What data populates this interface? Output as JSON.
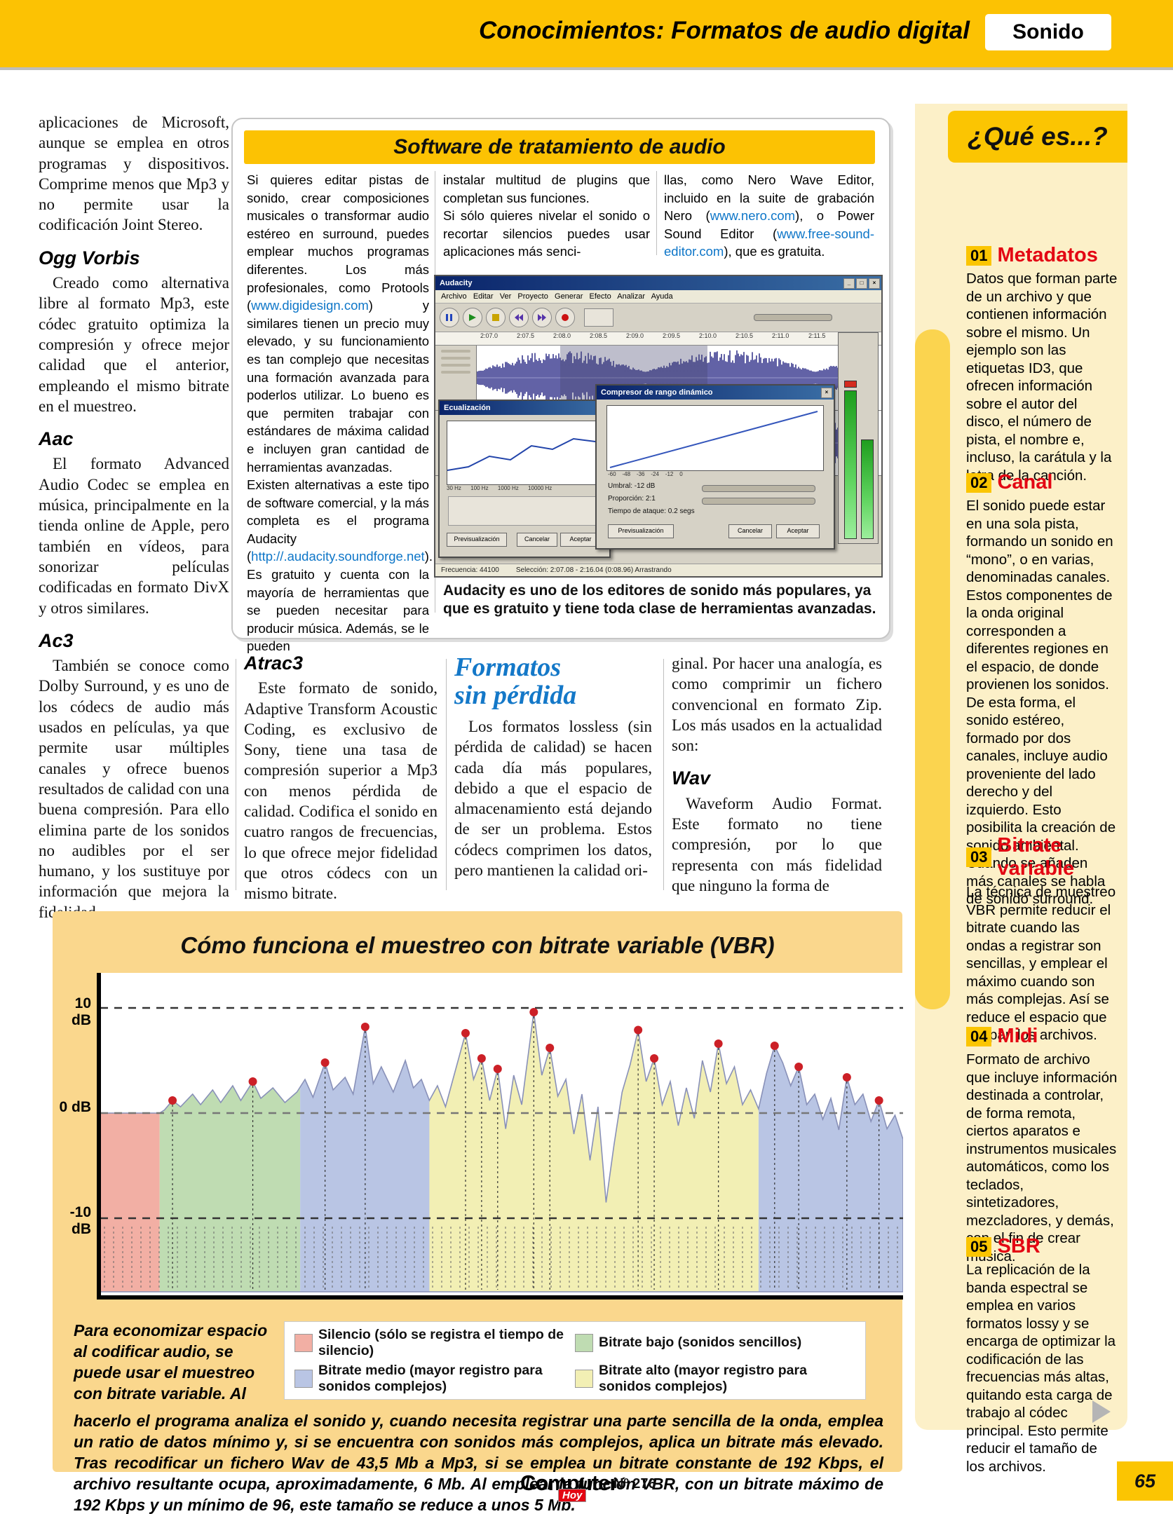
{
  "header": {
    "title": "Conocimientos: Formatos de audio digital",
    "badge": "Sonido"
  },
  "left_column": {
    "intro": "aplicaciones de Microsoft, aunque se emplea en otros programas y dispositivos. Comprime menos que Mp3 y no permite usar la codificación Joint Stereo.",
    "sections": [
      {
        "heading": "Ogg Vorbis",
        "body": "Creado como alternativa libre al formato Mp3, este códec gratuito optimiza la compresión y ofrece mejor calidad que el anterior, empleando el mismo bitrate en el muestreo."
      },
      {
        "heading": "Aac",
        "body": "El formato Advanced Audio Codec se emplea en música, principalmente en la tienda online de Apple, pero también en vídeos, para sonorizar películas codificadas en formato DivX y otros similares."
      },
      {
        "heading": "Ac3",
        "body": "También se conoce como Dolby Surround, y es uno de los códecs de audio más usados en películas, ya que permite usar múltiples canales y ofrece buenos resultados de calidad con una buena compresión. Para ello elimina parte de los sonidos no audibles por el ser humano, y los sustituye por información que mejora la fidelidad."
      }
    ]
  },
  "software_box": {
    "title": "Software de tratamiento de audio",
    "col1_p1a": "Si quieres editar pistas de sonido, crear composiciones musicales o transformar audio estéreo en surround, puedes emplear muchos programas diferentes. Los más profesionales, como Protools (",
    "col1_link1": "www.digidesign.com",
    "col1_p1b": ") y similares tienen un precio muy elevado, y su funcionamiento es tan complejo que necesitas una formación avanzada para poderlos utilizar. Lo bueno es que permiten trabajar con estándares de máxima calidad e incluyen gran cantidad de herramientas avanzadas.",
    "col1_p2a": "Existen alternativas a este tipo de software comercial, y la más completa es el programa Audacity (",
    "col1_link2": "http://.audacity.soundforge.net",
    "col1_p2b": "). Es gratuito y cuenta con la mayoría de herramientas que se pueden necesitar para producir música. Además, se le pueden",
    "col2_p1": "instalar multitud de plugins que completan sus funciones.",
    "col2_p2": "Si sólo quieres nivelar el sonido o recortar silencios puedes usar aplicaciones más senci-",
    "col3_a": "llas, como Nero Wave Editor, incluido en la suite de grabación Nero (",
    "col3_link1": "www.nero.com",
    "col3_b": "), o Power Sound Editor (",
    "col3_link2": "www.free-sound-editor.com",
    "col3_c": "), que es gratuita.",
    "caption": "Audacity es uno de los editores de sonido más populares, ya que es gratuito y tiene toda clase de herramientas avanzadas."
  },
  "audacity": {
    "window_title": "Audacity",
    "menu": "Archivo   Editar   Ver   Proyecto   Generar   Efecto   Analizar   Ayuda",
    "ruler_labels": [
      "2:07.0",
      "2:07.5",
      "2:08.0",
      "2:08.5",
      "2:09.0",
      "2:09.5",
      "2:10.0",
      "2:10.5",
      "2:11.0",
      "2:11.5"
    ],
    "status_left": "Frecuencia: 44100",
    "status_right": "Selección: 2:07.08 - 2:16.04 (0:08.96)   Arrastrando",
    "dialog1_title": "Ecualización",
    "dialog1_axis": "30 Hz      100 Hz      1000 Hz      10000 Hz",
    "dialog2_title": "Compresor de rango dinámico",
    "dialog2_axis": "-60    -48    -36    -24    -12    0",
    "dialog2_fields": {
      "f1": "Umbral: -12 dB",
      "f2": "Proporción: 2:1",
      "f3": "Tiempo de ataque: 0.2 segs"
    },
    "buttons": {
      "preview": "Previsualización",
      "cancel": "Cancelar",
      "ok": "Aceptar"
    }
  },
  "sections": {
    "atrac3_heading": "Atrac3",
    "atrac3_body": "Este formato de sonido, Adaptive Transform Acoustic Coding, es exclusivo de Sony, tiene una tasa de compresión superior a Mp3 con menos pérdida de calidad. Codifica el sonido en cuatro rangos de frecuencias, lo que ofrece mejor fidelidad que otros códecs con un mismo bitrate.",
    "lossless_heading_1": "Formatos",
    "lossless_heading_2": "sin pérdida",
    "lossless_body": "Los formatos lossless (sin pérdida de calidad) se hacen cada día más populares, debido a que el espacio de almacenamiento está dejando de ser un problema. Estos códecs comprimen los datos, pero mantienen la calidad ori-",
    "lossless_cont": "ginal. Por hacer una analogía, es como comprimir un fichero convencional en formato Zip. Los más usados en la actualidad son:",
    "wav_heading": "Wav",
    "wav_body": "Waveform Audio Format. Este formato no tiene compresión, por lo que representa con más fidelidad que ninguno la forma de"
  },
  "sidebar": {
    "title": "¿Qué es...?",
    "items": [
      {
        "num": "01",
        "heading": "Metadatos",
        "body": "Datos que forman parte de un archivo y que contienen información sobre el mismo. Un ejemplo son las etiquetas ID3, que ofrecen información sobre el autor del disco, el número de pista, el nombre e, incluso, la carátula y la letra de la canción."
      },
      {
        "num": "02",
        "heading": "Canal",
        "body": "El sonido puede estar en una sola pista, formando un sonido en “mono”, o en varias, denominadas canales. Estos componentes de la onda original corresponden a diferentes regiones en el espacio, de donde provienen los sonidos. De esta forma, el sonido estéreo, formado por dos canales, incluye audio proveniente del lado derecho y del izquierdo. Esto posibilita la creación de sonido ambiental. Cuando se añaden más canales se habla de sonido surround."
      },
      {
        "num": "03",
        "heading": "Bitrate variable",
        "body": "La técnica de muestreo VBR permite reducir el bitrate cuando las ondas a registrar son sencillas, y emplear el máximo cuando son más complejas. Así se reduce el espacio que ocupan los archivos."
      },
      {
        "num": "04",
        "heading": "Midi",
        "body": "Formato de archivo que incluye información destinada a controlar, de forma remota, ciertos aparatos e instrumentos musicales automáticos, como los teclados, sintetizadores, mezcladores, y demás, con el fin de crear música."
      },
      {
        "num": "05",
        "heading": "SBR",
        "body": "La replicación de la banda espectral se emplea en varios formatos lossy y se encarga de optimizar la codificación de las frecuencias más altas, quitando esta carga de trabajo al códec principal. Esto permite reducir el tamaño de los archivos."
      }
    ]
  },
  "chart": {
    "title": "Cómo funciona el muestreo con bitrate variable (VBR)",
    "intro": "Para economizar espacio al codificar audio, se puede usar el muestreo con bitrate variable. Al",
    "body": "hacerlo el programa analiza el sonido y, cuando necesita registrar una parte sencilla de la onda, emplea un ratio de datos mínimo y, si se encuentra con sonidos más complejos, aplica un bitrate más elevado. Tras recodificar un fichero Wav de 43,5 Mb a Mp3, si se emplea un bitrate constante de 192 Kbps, el archivo resultante ocupa, aproximadamente, 6 Mb. Al emplear la función VBR, con un bitrate máximo de 192 Kbps y un mínimo de 96, este tamaño se reduce a unos 5 Mb.",
    "ylabels": [
      "10 dB",
      "0 dB",
      "-10 dB"
    ],
    "legend": [
      {
        "label": "Silencio (sólo se registra el tiempo de silencio)",
        "color": "#F2AFA4"
      },
      {
        "label": "Bitrate bajo (sonidos sencillos)",
        "color": "#BFDCB2"
      },
      {
        "label": "Bitrate medio (mayor registro para sonidos complejos)",
        "color": "#B9C5E4"
      },
      {
        "label": "Bitrate alto (mayor registro para sonidos complejos)",
        "color": "#F2EFB4"
      }
    ]
  },
  "chart_data": {
    "type": "area",
    "title": "Cómo funciona el muestreo con bitrate variable (VBR)",
    "x_unit": "percent_of_timeline",
    "y_unit": "dB",
    "ylim": [
      -12,
      12
    ],
    "gridlines_db": [
      10,
      0,
      -10
    ],
    "regions": [
      {
        "label": "silencio",
        "from": 0,
        "to": 7.4,
        "color": "#F2AFA4"
      },
      {
        "label": "bitrate_bajo",
        "from": 7.4,
        "to": 24.9,
        "color": "#BFDCB2"
      },
      {
        "label": "bitrate_medio",
        "from": 24.9,
        "to": 41.0,
        "color": "#B9C5E4"
      },
      {
        "label": "bitrate_alto",
        "from": 41.0,
        "to": 82.0,
        "color": "#F2EFB4"
      },
      {
        "label": "bitrate_medio",
        "from": 82.0,
        "to": 100.0,
        "color": "#B9C5E4"
      }
    ],
    "envelope": [
      [
        0,
        0
      ],
      [
        7.4,
        0
      ],
      [
        8,
        0.3
      ],
      [
        9,
        1.2
      ],
      [
        10,
        0.6
      ],
      [
        11.5,
        1.8
      ],
      [
        12.5,
        0.8
      ],
      [
        14,
        2.2
      ],
      [
        15,
        1.0
      ],
      [
        16.5,
        2.6
      ],
      [
        17.5,
        1.2
      ],
      [
        19,
        3.0
      ],
      [
        20,
        1.4
      ],
      [
        21.5,
        2.4
      ],
      [
        23,
        1.0
      ],
      [
        24.5,
        2.0
      ],
      [
        25.5,
        3.2
      ],
      [
        26.5,
        1.5
      ],
      [
        28,
        4.8
      ],
      [
        29,
        2.2
      ],
      [
        30.5,
        3.4
      ],
      [
        31.5,
        1.8
      ],
      [
        33,
        8.2
      ],
      [
        34,
        2.8
      ],
      [
        35,
        4.4
      ],
      [
        36.5,
        2.0
      ],
      [
        38,
        5.0
      ],
      [
        39,
        2.4
      ],
      [
        40,
        3.2
      ],
      [
        41,
        1.2
      ],
      [
        42,
        2.6
      ],
      [
        43,
        0.6
      ],
      [
        44,
        3.4
      ],
      [
        45.5,
        7.6
      ],
      [
        46.5,
        3.2
      ],
      [
        47.5,
        5.2
      ],
      [
        48.5,
        1.2
      ],
      [
        49.5,
        4.2
      ],
      [
        50.5,
        -1.5
      ],
      [
        51.5,
        3.6
      ],
      [
        52.5,
        0.8
      ],
      [
        54,
        9.6
      ],
      [
        55,
        3.6
      ],
      [
        56,
        6.2
      ],
      [
        57,
        1.6
      ],
      [
        58,
        3.2
      ],
      [
        59,
        -2.0
      ],
      [
        60,
        1.8
      ],
      [
        61,
        -4.5
      ],
      [
        62,
        0.6
      ],
      [
        63,
        -8.5
      ],
      [
        64,
        -3.0
      ],
      [
        65,
        2.0
      ],
      [
        66,
        4.6
      ],
      [
        67,
        7.9
      ],
      [
        68,
        3.0
      ],
      [
        69,
        5.2
      ],
      [
        70,
        0.8
      ],
      [
        71,
        3.0
      ],
      [
        72,
        -1.2
      ],
      [
        73,
        2.4
      ],
      [
        74,
        -0.5
      ],
      [
        75,
        5.0
      ],
      [
        76,
        2.0
      ],
      [
        77,
        6.6
      ],
      [
        78,
        2.8
      ],
      [
        79,
        4.4
      ],
      [
        80,
        0.8
      ],
      [
        81,
        2.2
      ],
      [
        82,
        0.4
      ],
      [
        83,
        3.8
      ],
      [
        84,
        6.4
      ],
      [
        85,
        4.8
      ],
      [
        86,
        2.6
      ],
      [
        87,
        4.4
      ],
      [
        88,
        0.8
      ],
      [
        89,
        1.8
      ],
      [
        90,
        -0.6
      ],
      [
        91,
        1.4
      ],
      [
        92,
        -1.6
      ],
      [
        93,
        3.4
      ],
      [
        94,
        0.8
      ],
      [
        95,
        1.8
      ],
      [
        96,
        -0.8
      ],
      [
        97,
        1.2
      ],
      [
        98,
        -1.5
      ],
      [
        99,
        -0.2
      ],
      [
        100,
        -2.5
      ]
    ],
    "sample_dots": [
      [
        9,
        1.2
      ],
      [
        19,
        3.0
      ],
      [
        28,
        4.8
      ],
      [
        33,
        8.2
      ],
      [
        45.5,
        7.6
      ],
      [
        47.5,
        5.2
      ],
      [
        49.5,
        4.2
      ],
      [
        54,
        9.6
      ],
      [
        56,
        6.2
      ],
      [
        67,
        7.9
      ],
      [
        69,
        5.2
      ],
      [
        77,
        6.6
      ],
      [
        84,
        6.4
      ],
      [
        87,
        4.4
      ],
      [
        93,
        3.4
      ],
      [
        97,
        1.2
      ]
    ]
  },
  "footer": {
    "logo_main": "Computer",
    "logo_sub": "Hoy",
    "issue": "Nº 276",
    "page": "65"
  }
}
